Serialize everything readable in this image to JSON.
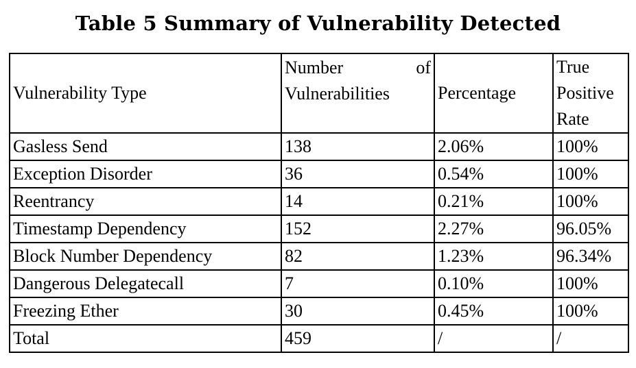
{
  "caption": "Table 5 Summary of Vulnerability Detected",
  "table": {
    "headers": {
      "type": "Vulnerability Type",
      "number_line1_a": "Number",
      "number_line1_b": "of",
      "number_line2": "Vulnerabilities",
      "percentage": "Percentage",
      "tpr_line1": "True",
      "tpr_line2": "Positive",
      "tpr_line3": "Rate"
    },
    "rows": [
      {
        "type": "Gasless Send",
        "number": "138",
        "percentage": "2.06%",
        "tpr": "100%"
      },
      {
        "type": "Exception Disorder",
        "number": "36",
        "percentage": "0.54%",
        "tpr": "100%"
      },
      {
        "type": "Reentrancy",
        "number": "14",
        "percentage": "0.21%",
        "tpr": "100%"
      },
      {
        "type": "Timestamp Dependency",
        "number": "152",
        "percentage": "2.27%",
        "tpr": "96.05%"
      },
      {
        "type": "Block Number Dependency",
        "number": "82",
        "percentage": "1.23%",
        "tpr": "96.34%"
      },
      {
        "type": "Dangerous Delegatecall",
        "number": "7",
        "percentage": "0.10%",
        "tpr": "100%"
      },
      {
        "type": "Freezing Ether",
        "number": "30",
        "percentage": "0.45%",
        "tpr": "100%"
      },
      {
        "type": "Total",
        "number": "459",
        "percentage": "/",
        "tpr": "/"
      }
    ]
  }
}
